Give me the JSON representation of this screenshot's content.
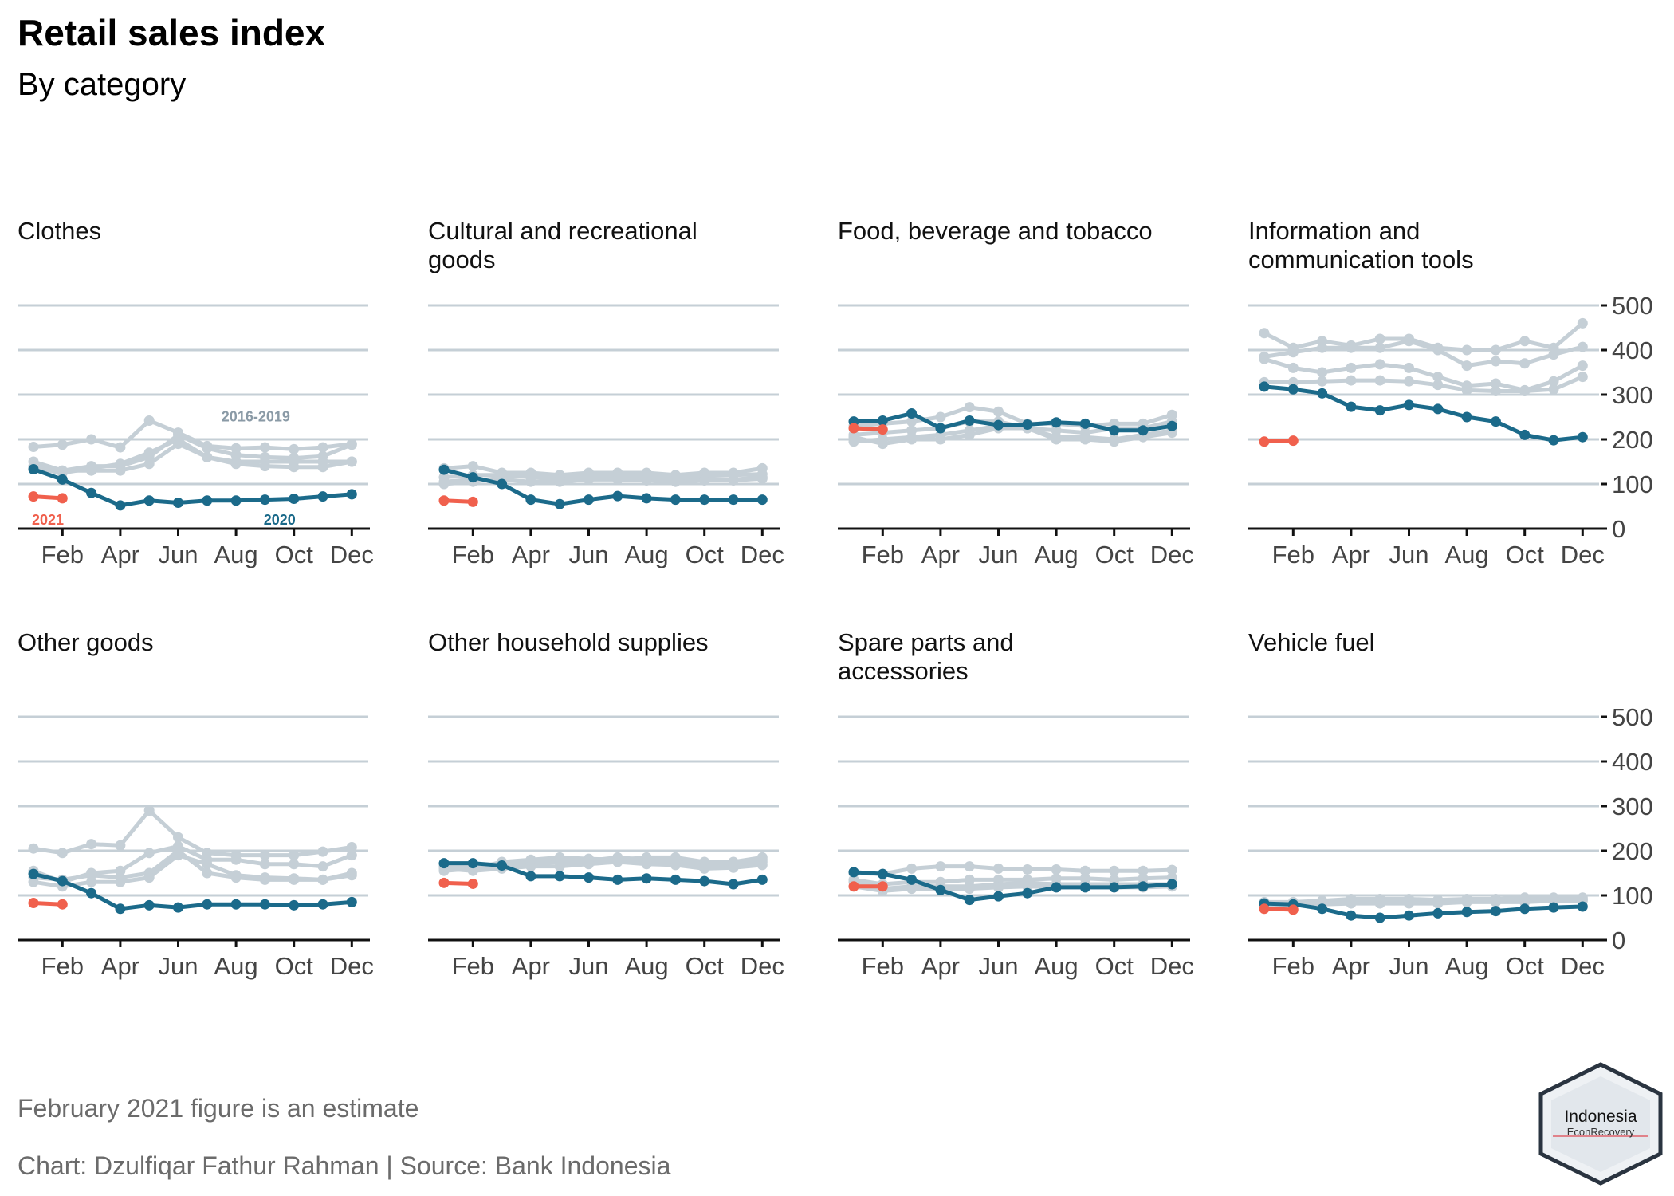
{
  "title": "Retail sales index",
  "subtitle": "By category",
  "footnote": "February 2021 figure is an estimate",
  "credit": "Chart: Dzulfiqar Fathur Rahman | Source: Bank Indonesia",
  "logo": {
    "line1": "Indonesia",
    "line2": "EconRecovery"
  },
  "colors": {
    "hist": "#c5cfd6",
    "y2020": "#1b6a8a",
    "y2021": "#f0604d",
    "axis": "#111111",
    "grid": "#c5cfd6",
    "histLabel": "#8a9aa6"
  },
  "chart_data": {
    "type": "line",
    "x_ticks": [
      "Feb",
      "Apr",
      "Jun",
      "Aug",
      "Oct",
      "Dec"
    ],
    "y_ticks": [
      0,
      100,
      200,
      300,
      400,
      500
    ],
    "ylim": [
      0,
      500
    ],
    "legend_labels": {
      "hist": "2016-2019",
      "y2020": "2020",
      "y2021": "2021"
    },
    "x": [
      "Jan",
      "Feb",
      "Mar",
      "Apr",
      "May",
      "Jun",
      "Jul",
      "Aug",
      "Sep",
      "Oct",
      "Nov",
      "Dec"
    ],
    "panels": [
      {
        "name": "Clothes",
        "hist": [
          [
            183,
            188,
            200,
            182,
            242,
            215,
            185,
            180,
            182,
            178,
            182,
            190
          ],
          [
            150,
            130,
            140,
            140,
            160,
            210,
            180,
            165,
            160,
            158,
            162,
            188
          ],
          [
            135,
            125,
            135,
            145,
            170,
            200,
            160,
            150,
            150,
            150,
            150,
            150
          ],
          [
            140,
            130,
            130,
            130,
            145,
            190,
            160,
            145,
            140,
            138,
            138,
            150
          ]
        ],
        "y2020": [
          133,
          110,
          80,
          52,
          63,
          58,
          63,
          63,
          65,
          67,
          72,
          77
        ],
        "y2021": [
          72,
          68
        ]
      },
      {
        "name": "Cultural and recreational goods",
        "hist": [
          [
            135,
            140,
            125,
            125,
            120,
            125,
            125,
            125,
            120,
            125,
            125,
            135
          ],
          [
            100,
            105,
            115,
            120,
            115,
            120,
            120,
            118,
            115,
            118,
            120,
            122
          ],
          [
            115,
            120,
            120,
            115,
            110,
            115,
            115,
            110,
            110,
            110,
            110,
            115
          ],
          [
            105,
            110,
            110,
            105,
            105,
            110,
            110,
            108,
            105,
            108,
            108,
            112
          ]
        ],
        "y2020": [
          132,
          115,
          100,
          65,
          55,
          65,
          73,
          68,
          65,
          65,
          65,
          65
        ],
        "y2021": [
          63,
          60
        ]
      },
      {
        "name": "Food, beverage and tobacco",
        "hist": [
          [
            230,
            235,
            240,
            250,
            272,
            262,
            235,
            235,
            230,
            235,
            235,
            255
          ],
          [
            210,
            215,
            220,
            225,
            240,
            240,
            225,
            220,
            215,
            225,
            225,
            240
          ],
          [
            195,
            200,
            205,
            210,
            220,
            230,
            225,
            205,
            205,
            200,
            210,
            220
          ],
          [
            205,
            190,
            200,
            200,
            210,
            225,
            225,
            200,
            200,
            195,
            205,
            215
          ]
        ],
        "y2020": [
          240,
          242,
          258,
          225,
          242,
          232,
          233,
          238,
          235,
          220,
          220,
          230
        ],
        "y2021": [
          225,
          222
        ]
      },
      {
        "name": "Information and communication tools",
        "hist": [
          [
            438,
            405,
            420,
            410,
            425,
            425,
            405,
            400,
            400,
            420,
            405,
            460
          ],
          [
            385,
            395,
            405,
            405,
            405,
            420,
            400,
            365,
            375,
            370,
            390,
            407
          ],
          [
            380,
            360,
            350,
            360,
            368,
            360,
            340,
            320,
            325,
            310,
            330,
            365
          ],
          [
            328,
            328,
            330,
            332,
            332,
            330,
            322,
            310,
            308,
            308,
            312,
            340
          ]
        ],
        "y2020": [
          318,
          312,
          303,
          273,
          265,
          277,
          268,
          250,
          240,
          210,
          198,
          205
        ],
        "y2021": [
          195,
          197
        ]
      },
      {
        "name": "Other goods",
        "hist": [
          [
            205,
            195,
            215,
            212,
            290,
            230,
            195,
            190,
            190,
            190,
            198,
            208
          ],
          [
            155,
            130,
            150,
            155,
            195,
            210,
            180,
            180,
            170,
            170,
            165,
            190
          ],
          [
            140,
            135,
            145,
            140,
            150,
            200,
            150,
            140,
            135,
            135,
            135,
            150
          ],
          [
            130,
            120,
            130,
            130,
            140,
            190,
            170,
            145,
            140,
            138,
            135,
            145
          ]
        ],
        "y2020": [
          148,
          132,
          105,
          70,
          78,
          73,
          80,
          80,
          80,
          78,
          80,
          85
        ],
        "y2021": [
          83,
          80
        ]
      },
      {
        "name": "Other household supplies",
        "hist": [
          [
            155,
            160,
            175,
            180,
            185,
            182,
            180,
            185,
            185,
            175,
            175,
            185
          ],
          [
            165,
            160,
            168,
            175,
            180,
            178,
            185,
            180,
            180,
            170,
            170,
            180
          ],
          [
            170,
            165,
            165,
            170,
            175,
            175,
            180,
            175,
            175,
            165,
            165,
            175
          ],
          [
            160,
            155,
            160,
            165,
            165,
            170,
            175,
            170,
            168,
            160,
            162,
            168
          ]
        ],
        "y2020": [
          172,
          172,
          167,
          143,
          143,
          140,
          135,
          138,
          135,
          132,
          125,
          135
        ],
        "y2021": [
          128,
          126
        ]
      },
      {
        "name": "Spare parts and accessories",
        "hist": [
          [
            150,
            148,
            160,
            165,
            165,
            160,
            158,
            158,
            155,
            155,
            155,
            157
          ],
          [
            135,
            125,
            130,
            130,
            135,
            135,
            135,
            138,
            138,
            135,
            138,
            140
          ],
          [
            130,
            115,
            120,
            120,
            120,
            125,
            128,
            125,
            125,
            125,
            125,
            125
          ],
          [
            120,
            110,
            115,
            115,
            115,
            118,
            120,
            118,
            118,
            118,
            118,
            120
          ]
        ],
        "y2020": [
          152,
          148,
          135,
          112,
          90,
          98,
          105,
          118,
          118,
          118,
          120,
          125
        ],
        "y2021": [
          120,
          120
        ]
      },
      {
        "name": "Vehicle fuel",
        "hist": [
          [
            85,
            85,
            88,
            92,
            92,
            92,
            90,
            92,
            92,
            95,
            95,
            95
          ],
          [
            82,
            82,
            85,
            88,
            88,
            88,
            88,
            90,
            90,
            92,
            92,
            92
          ],
          [
            78,
            80,
            82,
            85,
            85,
            85,
            85,
            88,
            88,
            88,
            90,
            90
          ],
          [
            75,
            78,
            80,
            82,
            82,
            82,
            82,
            85,
            85,
            85,
            88,
            88
          ]
        ],
        "y2020": [
          82,
          80,
          70,
          55,
          50,
          55,
          60,
          63,
          65,
          70,
          73,
          75
        ],
        "y2021": [
          70,
          68
        ]
      }
    ]
  }
}
